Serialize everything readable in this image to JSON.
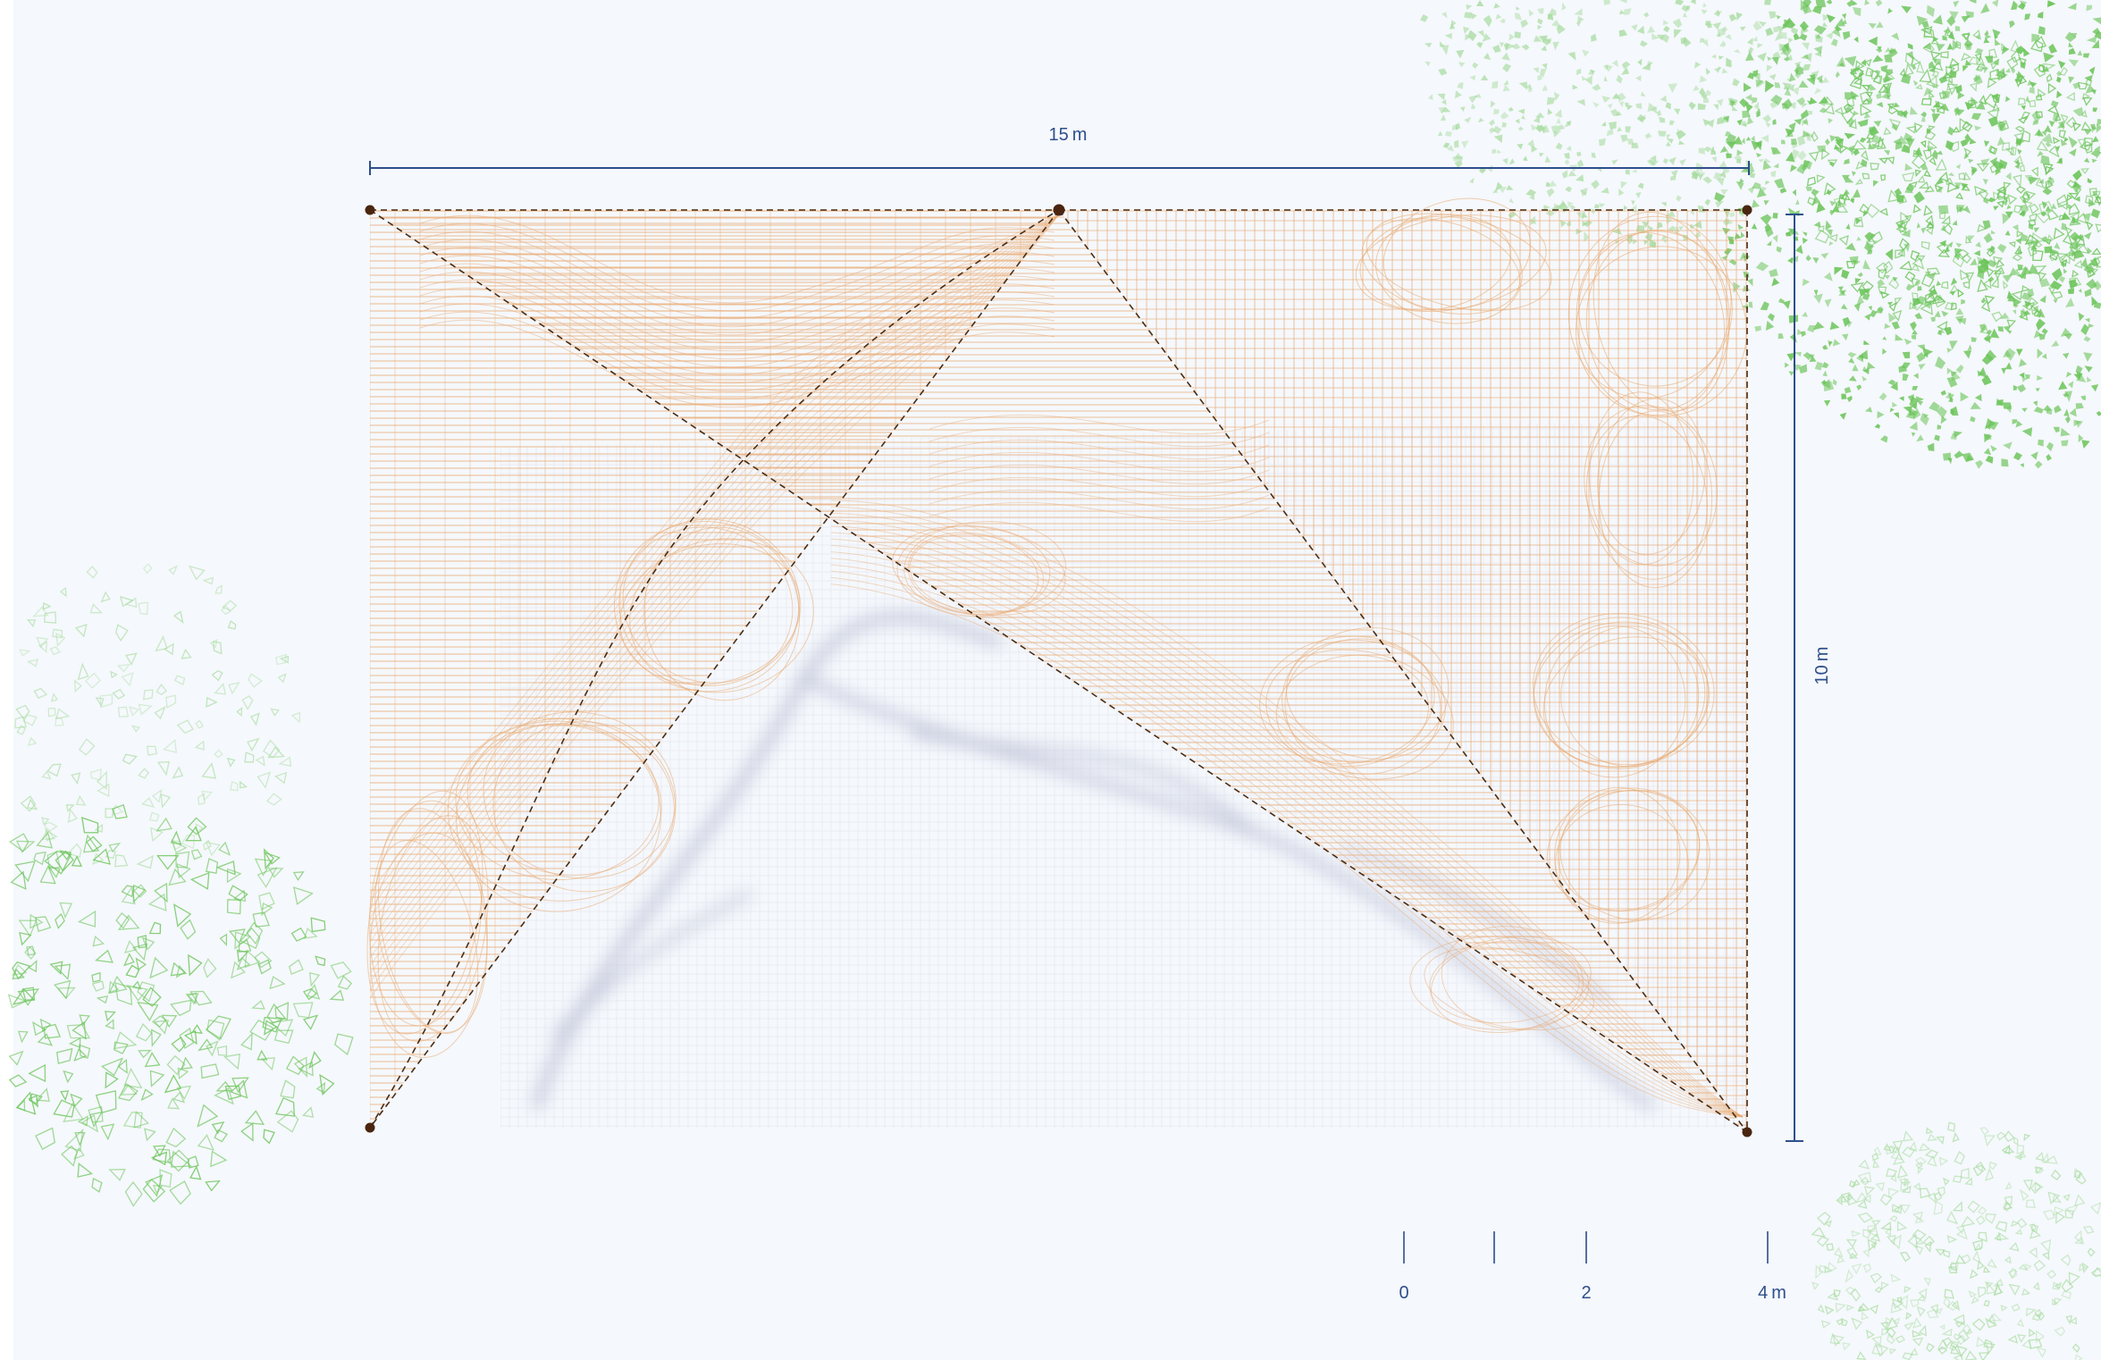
{
  "dimensions": {
    "width_label": "15 m",
    "height_label": "10 m"
  },
  "scale_bar": {
    "labels": [
      "0",
      "2",
      "4 m"
    ]
  },
  "colors": {
    "background": "#f5f8fc",
    "dimension_line": "#2d4f8c",
    "membrane": "#e8a56a",
    "guide_line": "#4a2c14",
    "anchor_point": "#4a2510",
    "shadow": "#8c93b5",
    "foliage_dense": "#6cc55a",
    "foliage_light": "#a8dca0"
  },
  "icons": {
    "anchor": "anchor-point-icon",
    "foliage": "tree-canopy-icon"
  }
}
